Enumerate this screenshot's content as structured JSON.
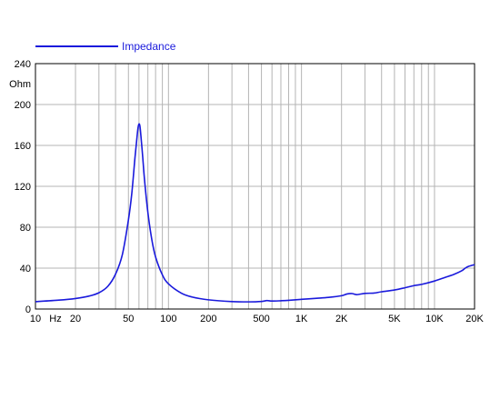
{
  "chart_data": {
    "type": "line",
    "x_scale": "log",
    "xlim": [
      10,
      20000
    ],
    "ylim": [
      0,
      240
    ],
    "y_unit_label": "Ohm",
    "x_unit_label": "Hz",
    "grid": true,
    "legend_position": "top-left",
    "x_ticks": [
      {
        "value": 10,
        "label": "10"
      },
      {
        "value": 20,
        "label": "20"
      },
      {
        "value": 50,
        "label": "50"
      },
      {
        "value": 100,
        "label": "100"
      },
      {
        "value": 200,
        "label": "200"
      },
      {
        "value": 500,
        "label": "500"
      },
      {
        "value": 1000,
        "label": "1K"
      },
      {
        "value": 2000,
        "label": "2K"
      },
      {
        "value": 5000,
        "label": "5K"
      },
      {
        "value": 10000,
        "label": "10K"
      },
      {
        "value": 20000,
        "label": "20K"
      }
    ],
    "y_ticks": [
      {
        "value": 0,
        "label": "0"
      },
      {
        "value": 40,
        "label": "40"
      },
      {
        "value": 80,
        "label": "80"
      },
      {
        "value": 120,
        "label": "120"
      },
      {
        "value": 160,
        "label": "160"
      },
      {
        "value": 200,
        "label": "200"
      },
      {
        "value": 240,
        "label": "240"
      }
    ],
    "series": [
      {
        "name": "Impedance",
        "color": "#1a1adc",
        "points": [
          [
            10,
            7.2
          ],
          [
            15,
            8.7
          ],
          [
            20,
            10.3
          ],
          [
            25,
            12.5
          ],
          [
            30,
            15.9
          ],
          [
            35,
            22.2
          ],
          [
            40,
            34.1
          ],
          [
            45,
            53.2
          ],
          [
            50,
            87.2
          ],
          [
            53,
            113
          ],
          [
            56,
            148
          ],
          [
            58,
            168
          ],
          [
            59,
            177
          ],
          [
            60,
            181
          ],
          [
            61,
            179
          ],
          [
            62,
            170
          ],
          [
            64,
            149
          ],
          [
            66,
            127
          ],
          [
            70,
            94.5
          ],
          [
            75,
            67.7
          ],
          [
            80,
            50.9
          ],
          [
            90,
            33.4
          ],
          [
            100,
            24.6
          ],
          [
            125,
            15.5
          ],
          [
            150,
            11.8
          ],
          [
            200,
            9.0
          ],
          [
            300,
            7.3
          ],
          [
            400,
            7.0
          ],
          [
            500,
            7.4
          ],
          [
            550,
            8.3
          ],
          [
            600,
            7.8
          ],
          [
            700,
            8.1
          ],
          [
            800,
            8.5
          ],
          [
            1000,
            9.5
          ],
          [
            1300,
            10.5
          ],
          [
            1600,
            11.4
          ],
          [
            2000,
            13.0
          ],
          [
            2200,
            14.7
          ],
          [
            2400,
            15.1
          ],
          [
            2600,
            14.1
          ],
          [
            3000,
            15.3
          ],
          [
            3500,
            15.6
          ],
          [
            4000,
            16.9
          ],
          [
            5000,
            18.6
          ],
          [
            6000,
            20.8
          ],
          [
            7000,
            22.9
          ],
          [
            8000,
            24.1
          ],
          [
            10000,
            27.4
          ],
          [
            12000,
            30.9
          ],
          [
            14000,
            33.9
          ],
          [
            16000,
            37.4
          ],
          [
            17000,
            39.9
          ],
          [
            18000,
            41.7
          ],
          [
            20000,
            43.4
          ]
        ]
      }
    ]
  }
}
